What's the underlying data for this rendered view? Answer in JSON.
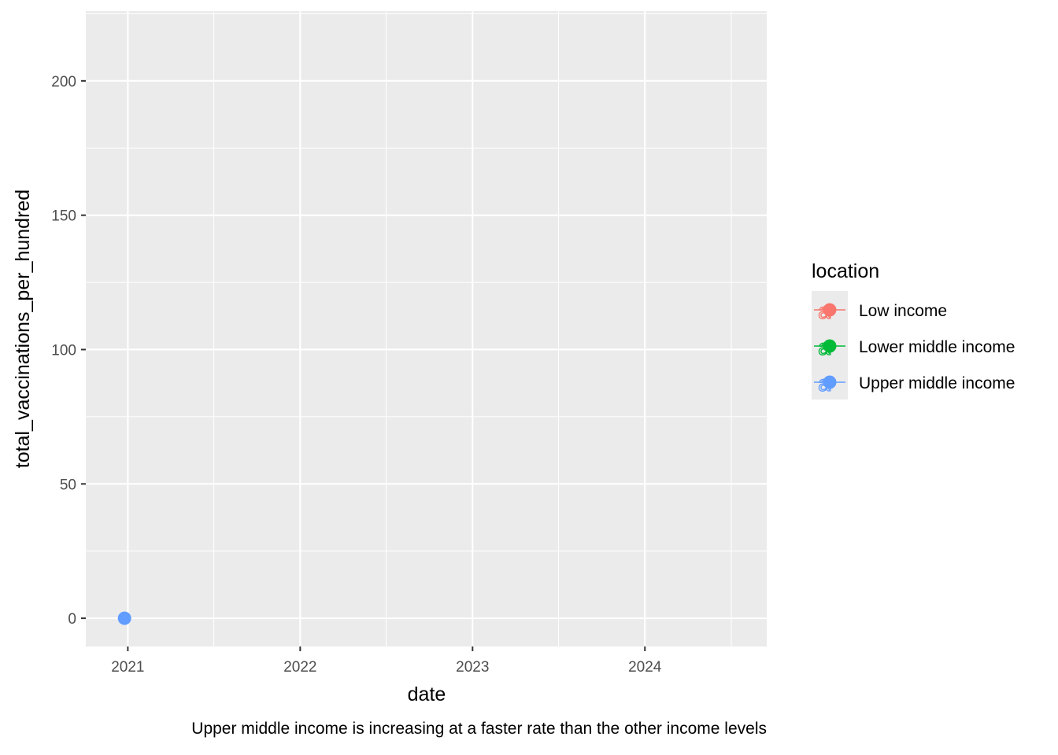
{
  "chart_data": {
    "type": "scatter",
    "title": "",
    "xlabel": "date",
    "ylabel": "total_vaccinations_per_hundred",
    "caption": "Upper middle income is increasing at a faster rate than the other income levels",
    "x_ticks": [
      "2021",
      "2022",
      "2023",
      "2024"
    ],
    "y_ticks": [
      "0",
      "50",
      "100",
      "150",
      "200"
    ],
    "xlim": [
      "2020-10-04",
      "2024-09-15"
    ],
    "ylim": [
      -10.5,
      226
    ],
    "grid": true,
    "legend": {
      "title": "location",
      "placement": "right",
      "entries": [
        "Low income",
        "Lower middle income",
        "Upper middle income"
      ]
    },
    "series": [
      {
        "name": "Low income",
        "color": "#F8766D",
        "points": []
      },
      {
        "name": "Lower middle income",
        "color": "#00BA38",
        "points": []
      },
      {
        "name": "Upper middle income",
        "color": "#619CFF",
        "points": [
          {
            "x": "2020-12-25",
            "y": 0
          }
        ]
      }
    ]
  }
}
